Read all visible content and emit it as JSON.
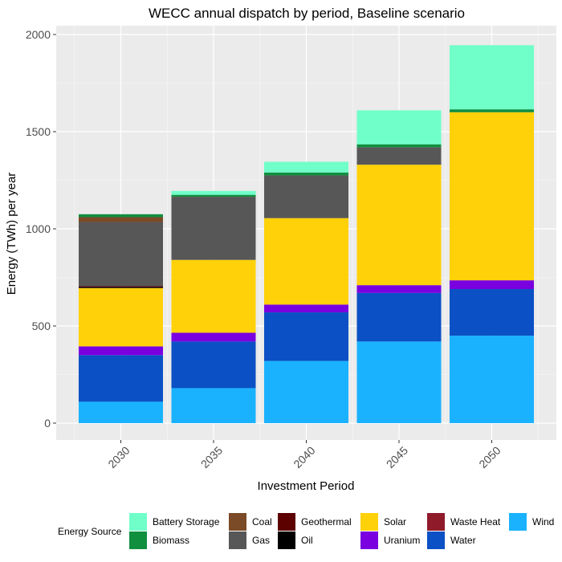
{
  "chart_data": {
    "type": "bar",
    "stacked": true,
    "title": "WECC annual dispatch by period, Baseline scenario",
    "xlabel": "Investment Period",
    "ylabel": "Energy (TWh) per year",
    "categories": [
      "2030",
      "2035",
      "2040",
      "2045",
      "2050"
    ],
    "ylim": [
      0,
      2000
    ],
    "yticks": [
      0,
      500,
      1000,
      1500,
      2000
    ],
    "grid": true,
    "legend_title": "Energy Source",
    "legend_position": "bottom",
    "series": [
      {
        "name": "Wind",
        "color": "#1AB2FF",
        "values": [
          110,
          180,
          320,
          420,
          450
        ]
      },
      {
        "name": "Water",
        "color": "#0B50C4",
        "values": [
          240,
          240,
          250,
          250,
          240
        ]
      },
      {
        "name": "Waste Heat",
        "color": "#8F1A2A",
        "values": [
          0,
          0,
          0,
          0,
          0
        ]
      },
      {
        "name": "Uranium",
        "color": "#7A00E0",
        "values": [
          45,
          45,
          40,
          40,
          45
        ]
      },
      {
        "name": "Solar",
        "color": "#FFD109",
        "values": [
          300,
          375,
          445,
          620,
          865
        ]
      },
      {
        "name": "Oil",
        "color": "#000000",
        "values": [
          5,
          0,
          0,
          0,
          0
        ]
      },
      {
        "name": "Geothermal",
        "color": "#5C0000",
        "values": [
          5,
          0,
          0,
          0,
          0
        ]
      },
      {
        "name": "Gas",
        "color": "#575757",
        "values": [
          330,
          325,
          220,
          90,
          0
        ]
      },
      {
        "name": "Coal",
        "color": "#7B4A26",
        "values": [
          25,
          0,
          0,
          0,
          0
        ]
      },
      {
        "name": "Biomass",
        "color": "#108F3E",
        "values": [
          15,
          10,
          15,
          15,
          15
        ]
      },
      {
        "name": "Battery Storage",
        "color": "#70FFC9",
        "values": [
          0,
          20,
          55,
          175,
          330
        ]
      }
    ]
  },
  "legend_layout": [
    [
      "Battery Storage",
      "Biomass"
    ],
    [
      "Coal",
      "Gas"
    ],
    [
      "Geothermal",
      "Oil"
    ],
    [
      "Solar",
      "Uranium"
    ],
    [
      "Waste Heat",
      "Water"
    ],
    [
      "Wind"
    ]
  ]
}
